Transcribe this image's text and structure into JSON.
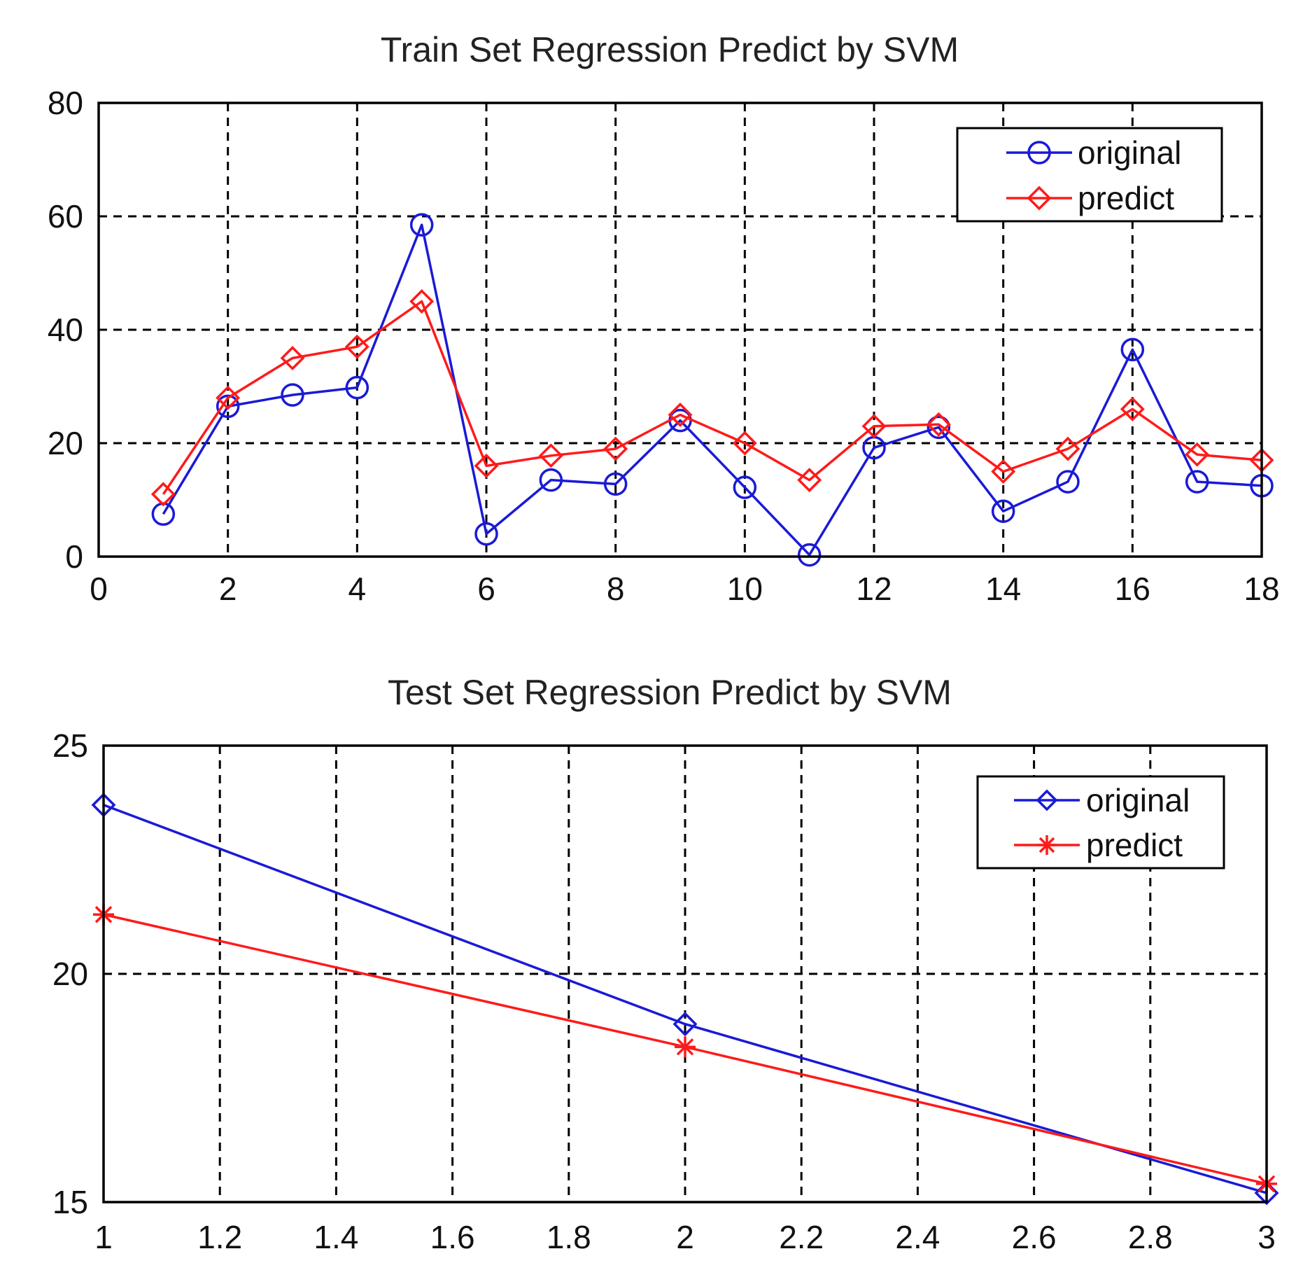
{
  "chart_data": [
    {
      "type": "line",
      "title": "Train Set Regression Predict by SVM",
      "xlabel": "",
      "ylabel": "",
      "xlim": [
        0,
        18
      ],
      "ylim": [
        0,
        80
      ],
      "xticks": [
        0,
        2,
        4,
        6,
        8,
        10,
        12,
        14,
        16,
        18
      ],
      "yticks": [
        0,
        20,
        40,
        60,
        80
      ],
      "xtick_labels": [
        "0",
        "2",
        "4",
        "6",
        "8",
        "10",
        "12",
        "14",
        "16",
        "18"
      ],
      "ytick_labels": [
        "0",
        "20",
        "40",
        "60",
        "80"
      ],
      "grid": true,
      "legend_position": "top-right",
      "x": [
        1,
        2,
        3,
        4,
        5,
        6,
        7,
        8,
        9,
        10,
        11,
        12,
        13,
        14,
        15,
        16,
        17,
        18
      ],
      "series": [
        {
          "name": "original",
          "color": "#1a1ad6",
          "marker": "circle",
          "values": [
            7.5,
            26.5,
            28.5,
            29.8,
            58.5,
            4,
            13.5,
            12.8,
            24,
            12.2,
            0.3,
            19.2,
            22.8,
            8,
            13.2,
            36.5,
            13.2,
            12.5
          ]
        },
        {
          "name": "predict",
          "color": "#ff1a1a",
          "marker": "diamond",
          "values": [
            11,
            28,
            35,
            37,
            45,
            16,
            17.8,
            19,
            25,
            20,
            13.5,
            23,
            23.3,
            15,
            19,
            26,
            18,
            17
          ]
        }
      ]
    },
    {
      "type": "line",
      "title": "Test Set Regression Predict by SVM",
      "xlabel": "",
      "ylabel": "",
      "xlim": [
        1,
        3
      ],
      "ylim": [
        15,
        25
      ],
      "xticks": [
        1,
        1.2,
        1.4,
        1.6,
        1.8,
        2,
        2.2,
        2.4,
        2.6,
        2.8,
        3
      ],
      "yticks": [
        15,
        20,
        25
      ],
      "xtick_labels": [
        "1",
        "1.2",
        "1.4",
        "1.6",
        "1.8",
        "2",
        "2.2",
        "2.4",
        "2.6",
        "2.8",
        "3"
      ],
      "ytick_labels": [
        "15",
        "20",
        "25"
      ],
      "grid": true,
      "legend_position": "top-right",
      "x": [
        1,
        2,
        3
      ],
      "series": [
        {
          "name": "original",
          "color": "#1a1ad6",
          "marker": "diamond",
          "values": [
            23.7,
            18.9,
            15.2
          ]
        },
        {
          "name": "predict",
          "color": "#ff1a1a",
          "marker": "star",
          "values": [
            21.3,
            18.4,
            15.4
          ]
        }
      ]
    }
  ]
}
